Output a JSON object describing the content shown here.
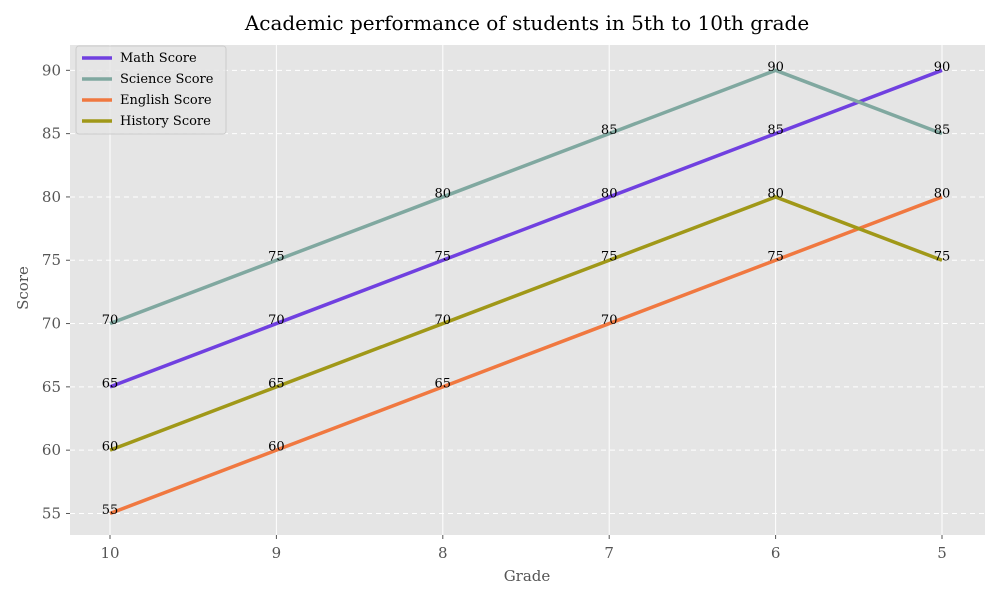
{
  "chart_data": {
    "type": "line",
    "title": "Academic performance of students in 5th to 10th grade",
    "xlabel": "Grade",
    "ylabel": "Score",
    "categories": [
      "10",
      "9",
      "8",
      "7",
      "6",
      "5"
    ],
    "ylim": [
      53.3,
      92
    ],
    "yticks": [
      55,
      60,
      65,
      70,
      75,
      80,
      85,
      90
    ],
    "grid": true,
    "legend_position": "top-left",
    "series": [
      {
        "name": "Math Score",
        "color": "#7040e0",
        "values": [
          65,
          70,
          75,
          80,
          85,
          90
        ]
      },
      {
        "name": "Science Score",
        "color": "#80a8a0",
        "values": [
          70,
          75,
          80,
          85,
          90,
          85
        ]
      },
      {
        "name": "English Score",
        "color": "#f07840",
        "values": [
          55,
          60,
          65,
          70,
          75,
          80
        ]
      },
      {
        "name": "History Score",
        "color": "#a09818",
        "values": [
          60,
          65,
          70,
          75,
          80,
          75
        ]
      }
    ],
    "data_labels": [
      {
        "category": "10",
        "texts": [
          "70",
          "65",
          "60",
          "55"
        ]
      },
      {
        "category": "9",
        "texts": [
          "75",
          "70",
          "65",
          "60"
        ]
      },
      {
        "category": "8",
        "texts": [
          "80",
          "75",
          "70",
          "65"
        ]
      },
      {
        "category": "7",
        "texts": [
          "85",
          "80",
          "75",
          "70"
        ]
      },
      {
        "category": "6",
        "texts": [
          "90",
          "85",
          "80",
          "75"
        ]
      },
      {
        "category": "5",
        "texts": [
          "90",
          "85",
          "80",
          "75"
        ]
      }
    ],
    "colors": {
      "plot_background": "#e5e5e5",
      "grid": "#ffffff"
    }
  }
}
